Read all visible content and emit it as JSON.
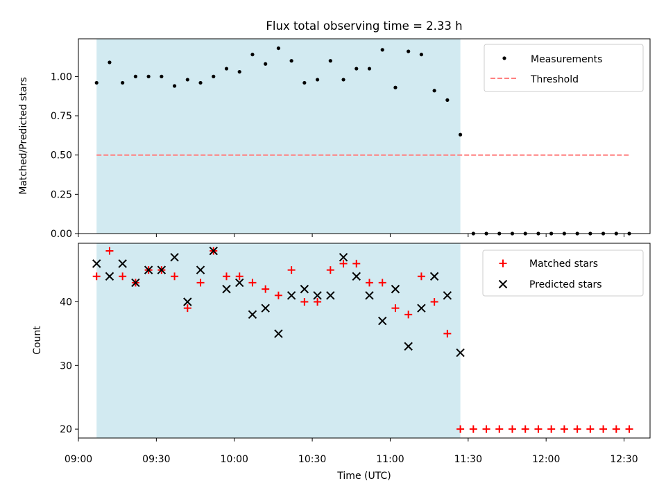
{
  "chart_data": [
    {
      "type": "scatter",
      "title": "Flux total observing time = 2.33 h",
      "xlabel": "",
      "ylabel": "Matched/Predicted stars",
      "ylim": [
        0,
        1.24
      ],
      "yticks": [
        "0.00",
        "0.25",
        "0.50",
        "0.75",
        "1.00"
      ],
      "ytick_values": [
        0,
        0.25,
        0.5,
        0.75,
        1.0
      ],
      "shaded_region": {
        "start": "09:07",
        "end": "11:27",
        "color": "#add8e6"
      },
      "legend": {
        "placement": "upper right",
        "entries": [
          "Measurements",
          "Threshold"
        ]
      },
      "series": [
        {
          "name": "Measurements",
          "marker": "dot",
          "color": "#000000",
          "x": [
            "09:07",
            "09:12",
            "09:17",
            "09:22",
            "09:27",
            "09:32",
            "09:37",
            "09:42",
            "09:47",
            "09:52",
            "09:57",
            "10:02",
            "10:07",
            "10:12",
            "10:17",
            "10:22",
            "10:27",
            "10:32",
            "10:37",
            "10:42",
            "10:47",
            "10:52",
            "10:57",
            "11:02",
            "11:07",
            "11:12",
            "11:17",
            "11:22",
            "11:27",
            "11:32",
            "11:37",
            "11:42",
            "11:47",
            "11:52",
            "11:57",
            "12:02",
            "12:07",
            "12:12",
            "12:17",
            "12:22",
            "12:27",
            "12:32"
          ],
          "y": [
            0.96,
            1.09,
            0.96,
            1.0,
            1.0,
            1.0,
            0.94,
            0.98,
            0.96,
            1.0,
            1.05,
            1.03,
            1.14,
            1.08,
            1.18,
            1.1,
            0.96,
            0.98,
            1.1,
            0.98,
            1.05,
            1.05,
            1.17,
            0.93,
            1.16,
            1.14,
            0.91,
            0.85,
            0.63,
            0,
            0,
            0,
            0,
            0,
            0,
            0,
            0,
            0,
            0,
            0,
            0,
            0
          ]
        },
        {
          "name": "Threshold",
          "style": "dashed",
          "color": "#ff7f7f",
          "x": [
            "09:07",
            "12:32"
          ],
          "y": [
            0.5,
            0.5
          ]
        }
      ]
    },
    {
      "type": "scatter",
      "xlabel": "Time (UTC)",
      "ylabel": "Count",
      "ylim": [
        18.6,
        49.2
      ],
      "yticks": [
        "20",
        "30",
        "40"
      ],
      "ytick_values": [
        20,
        30,
        40
      ],
      "xticks": [
        "09:00",
        "09:30",
        "10:00",
        "10:30",
        "11:00",
        "11:30",
        "12:00",
        "12:30"
      ],
      "xlim": [
        "09:00",
        "12:40"
      ],
      "shaded_region": {
        "start": "09:07",
        "end": "11:27",
        "color": "#add8e6"
      },
      "legend": {
        "placement": "upper right",
        "entries": [
          "Matched stars",
          "Predicted stars"
        ]
      },
      "x": [
        "09:07",
        "09:12",
        "09:17",
        "09:22",
        "09:27",
        "09:32",
        "09:37",
        "09:42",
        "09:47",
        "09:52",
        "09:57",
        "10:02",
        "10:07",
        "10:12",
        "10:17",
        "10:22",
        "10:27",
        "10:32",
        "10:37",
        "10:42",
        "10:47",
        "10:52",
        "10:57",
        "11:02",
        "11:07",
        "11:12",
        "11:17",
        "11:22",
        "11:27",
        "11:32",
        "11:37",
        "11:42",
        "11:47",
        "11:52",
        "11:57",
        "12:02",
        "12:07",
        "12:12",
        "12:17",
        "12:22",
        "12:27",
        "12:32"
      ],
      "series": [
        {
          "name": "Matched stars",
          "marker": "plus",
          "color": "#ff0000",
          "values": [
            44,
            48,
            44,
            43,
            45,
            45,
            44,
            39,
            43,
            48,
            44,
            44,
            43,
            42,
            41,
            45,
            40,
            40,
            45,
            46,
            46,
            43,
            43,
            39,
            38,
            44,
            40,
            35,
            20,
            20,
            20,
            20,
            20,
            20,
            20,
            20,
            20,
            20,
            20,
            20,
            20,
            20
          ]
        },
        {
          "name": "Predicted stars",
          "marker": "x",
          "color": "#000000",
          "values": [
            46,
            44,
            46,
            43,
            45,
            45,
            47,
            40,
            45,
            48,
            42,
            43,
            38,
            39,
            35,
            41,
            42,
            41,
            41,
            47,
            44,
            41,
            37,
            42,
            33,
            39,
            44,
            41,
            32,
            null,
            null,
            null,
            null,
            null,
            null,
            null,
            null,
            null,
            null,
            null,
            null,
            null
          ]
        }
      ]
    }
  ]
}
